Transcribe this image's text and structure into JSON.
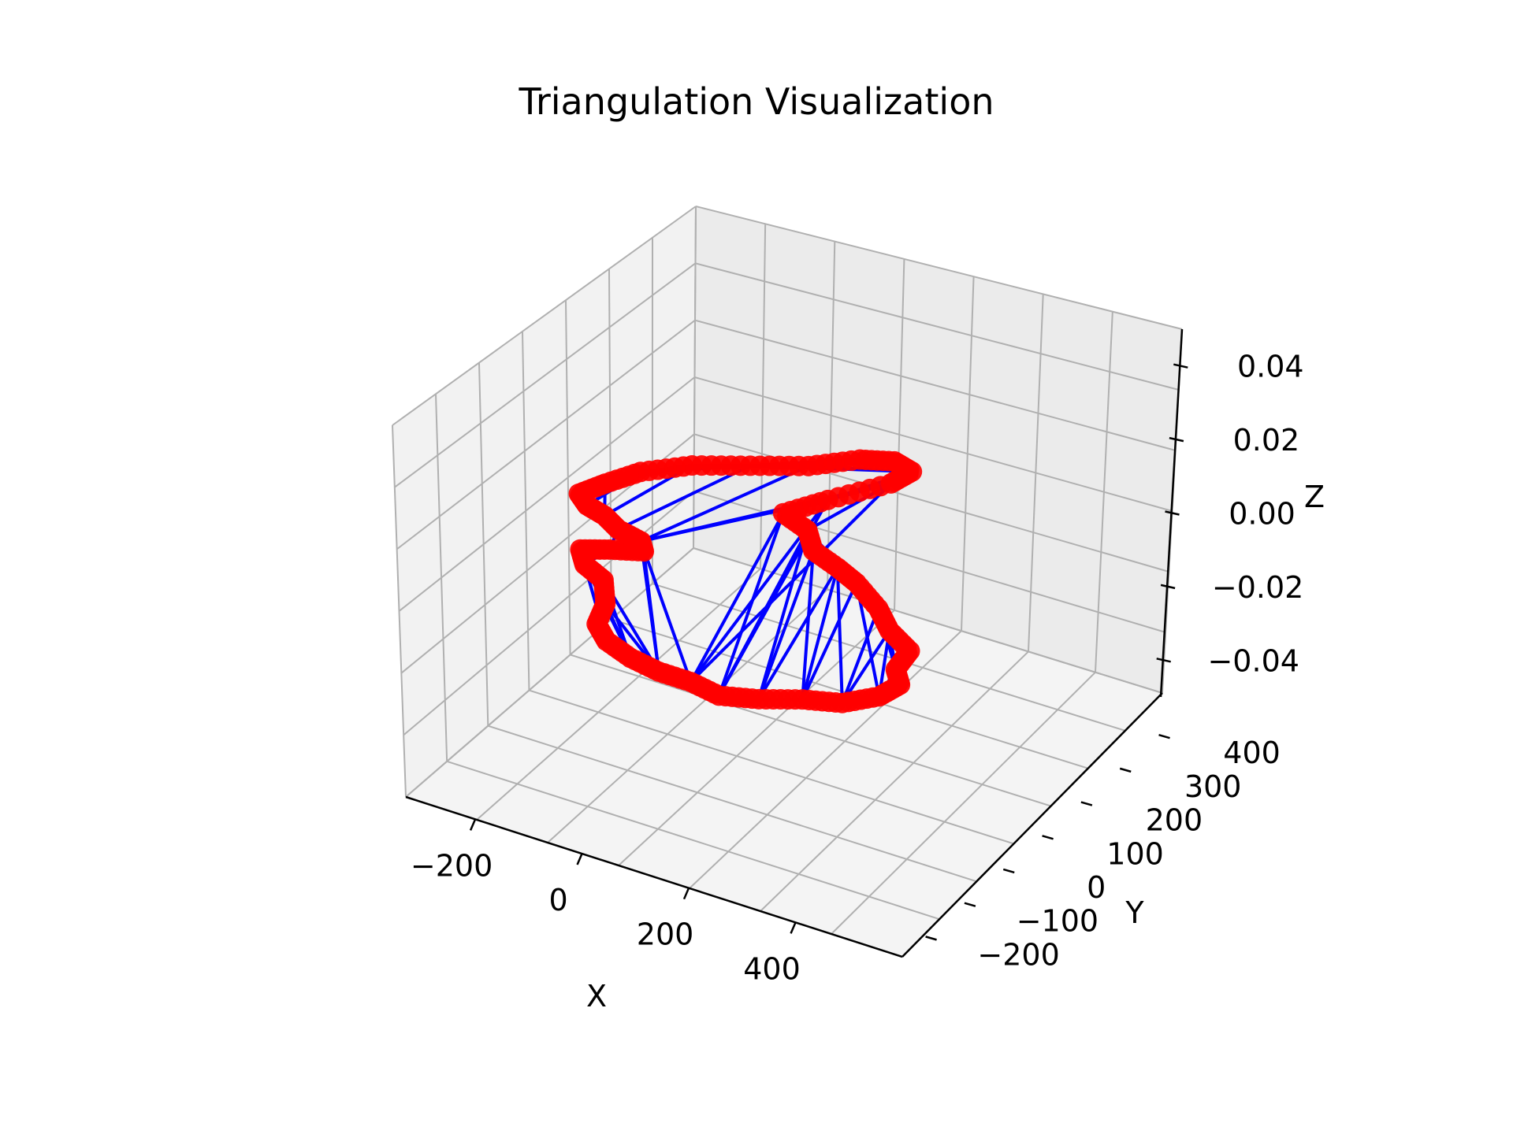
{
  "chart_data": {
    "type": "3d-triangulation",
    "title": "Triangulation Visualization",
    "xlabel": "X",
    "ylabel": "Y",
    "zlabel": "Z",
    "x_ticks": [
      "−200",
      "0",
      "200",
      "400"
    ],
    "y_ticks": [
      "−200",
      "−100",
      "0",
      "100",
      "200",
      "300",
      "400"
    ],
    "z_ticks": [
      "−0.04",
      "−0.02",
      "0.00",
      "0.02",
      "0.04"
    ],
    "z_range": [
      -0.05,
      0.05
    ],
    "grid": true,
    "edge_color": "#0000ff",
    "point_color": "#ff0000",
    "boundary_points": [
      {
        "x": 0,
        "y": -180
      },
      {
        "x": 60,
        "y": -200
      },
      {
        "x": 120,
        "y": -210
      },
      {
        "x": 180,
        "y": -210
      },
      {
        "x": 240,
        "y": -220
      },
      {
        "x": 300,
        "y": -200
      },
      {
        "x": 360,
        "y": -170
      },
      {
        "x": 420,
        "y": -150
      },
      {
        "x": 460,
        "y": -110
      },
      {
        "x": 470,
        "y": -70
      },
      {
        "x": 440,
        "y": -40
      },
      {
        "x": 430,
        "y": 10
      },
      {
        "x": 370,
        "y": 40
      },
      {
        "x": 320,
        "y": 80
      },
      {
        "x": 250,
        "y": 120
      },
      {
        "x": 200,
        "y": 140
      },
      {
        "x": 140,
        "y": 160
      },
      {
        "x": 100,
        "y": 200
      },
      {
        "x": 40,
        "y": 220
      },
      {
        "x": 80,
        "y": 280
      },
      {
        "x": 140,
        "y": 360
      },
      {
        "x": 150,
        "y": 400
      },
      {
        "x": 110,
        "y": 410
      },
      {
        "x": 60,
        "y": 390
      },
      {
        "x": 0,
        "y": 340
      },
      {
        "x": -80,
        "y": 300
      },
      {
        "x": -160,
        "y": 260
      },
      {
        "x": -220,
        "y": 210
      },
      {
        "x": -250,
        "y": 160
      },
      {
        "x": -270,
        "y": 120
      },
      {
        "x": -240,
        "y": 100
      },
      {
        "x": -200,
        "y": 90
      },
      {
        "x": -160,
        "y": 70
      },
      {
        "x": -110,
        "y": 60
      },
      {
        "x": -90,
        "y": 40
      },
      {
        "x": -140,
        "y": 20
      },
      {
        "x": -180,
        "y": 0
      },
      {
        "x": -150,
        "y": -30
      },
      {
        "x": -100,
        "y": -50
      },
      {
        "x": -60,
        "y": -100
      },
      {
        "x": -40,
        "y": -150
      }
    ],
    "triangulation_edges": [
      [
        0,
        37
      ],
      [
        0,
        38
      ],
      [
        1,
        38
      ],
      [
        1,
        39
      ],
      [
        2,
        39
      ],
      [
        2,
        33
      ],
      [
        3,
        33
      ],
      [
        3,
        19
      ],
      [
        4,
        18
      ],
      [
        4,
        17
      ],
      [
        5,
        16
      ],
      [
        5,
        15
      ],
      [
        6,
        15
      ],
      [
        6,
        14
      ],
      [
        7,
        13
      ],
      [
        8,
        12
      ],
      [
        9,
        11
      ],
      [
        10,
        12
      ],
      [
        12,
        14
      ],
      [
        13,
        16
      ],
      [
        14,
        17
      ],
      [
        16,
        18
      ],
      [
        17,
        20
      ],
      [
        18,
        19
      ],
      [
        19,
        21
      ],
      [
        20,
        22
      ],
      [
        22,
        24
      ],
      [
        23,
        25
      ],
      [
        24,
        26
      ],
      [
        25,
        27
      ],
      [
        26,
        28
      ],
      [
        27,
        29
      ],
      [
        28,
        31
      ],
      [
        29,
        30
      ],
      [
        30,
        32
      ],
      [
        31,
        33
      ],
      [
        32,
        34
      ],
      [
        33,
        35
      ],
      [
        34,
        36
      ],
      [
        35,
        37
      ],
      [
        36,
        38
      ],
      [
        38,
        40
      ],
      [
        39,
        40
      ],
      [
        0,
        40
      ],
      [
        2,
        34
      ],
      [
        3,
        20
      ],
      [
        4,
        19
      ],
      [
        5,
        17
      ],
      [
        7,
        15
      ],
      [
        8,
        14
      ],
      [
        9,
        13
      ],
      [
        21,
        23
      ],
      [
        24,
        33
      ],
      [
        25,
        32
      ],
      [
        26,
        31
      ],
      [
        27,
        30
      ],
      [
        20,
        33
      ],
      [
        21,
        25
      ],
      [
        22,
        24
      ],
      [
        1,
        37
      ],
      [
        2,
        38
      ],
      [
        3,
        18
      ],
      [
        6,
        16
      ],
      [
        7,
        12
      ],
      [
        11,
        13
      ],
      [
        21,
        24
      ],
      [
        19,
        33
      ],
      [
        32,
        35
      ],
      [
        33,
        36
      ],
      [
        10,
        8
      ],
      [
        15,
        17
      ],
      [
        0,
        36
      ]
    ]
  }
}
